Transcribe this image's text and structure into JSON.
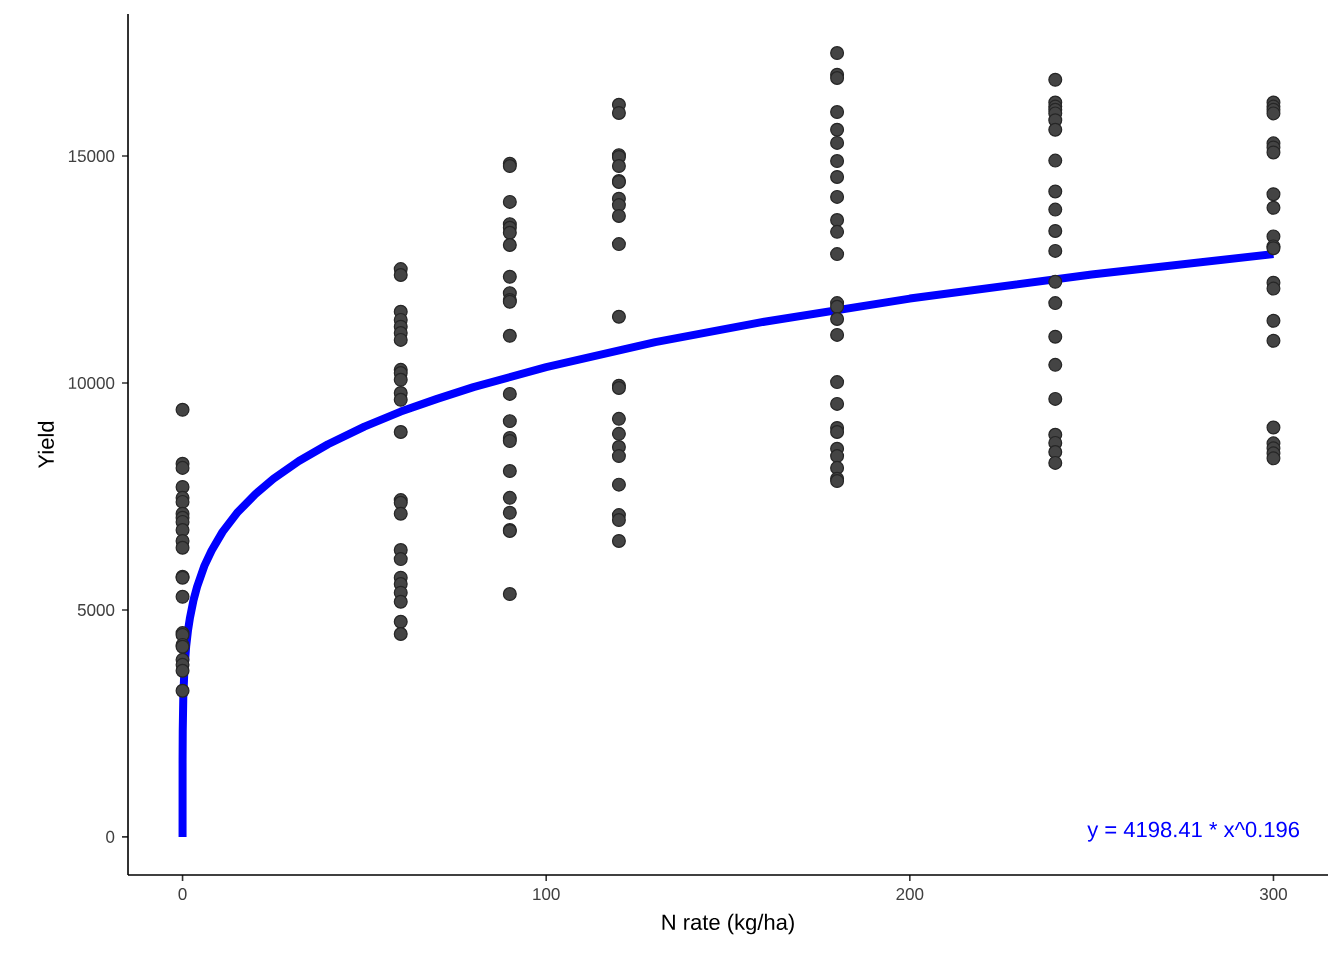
{
  "chart_data": {
    "type": "scatter",
    "xlabel": "N rate (kg/ha)",
    "ylabel": "Yield",
    "xlim": [
      -15,
      315
    ],
    "ylim": [
      -840,
      18130
    ],
    "xticks": [
      0,
      100,
      200,
      300
    ],
    "yticks": [
      0,
      5000,
      10000,
      15000
    ],
    "grid": false,
    "marker": "circle",
    "annotations": [
      "y = 4198.41 * x^0.196"
    ],
    "series": [
      {
        "color": "#444444",
        "x": [
          0,
          0,
          0,
          0,
          0,
          0,
          0,
          0,
          0,
          0,
          0,
          0,
          0,
          0,
          0,
          0,
          0,
          0,
          0,
          0,
          0,
          0,
          0,
          60,
          60,
          60,
          60,
          60,
          60,
          60,
          60,
          60,
          60,
          60,
          60,
          60,
          60,
          60,
          60,
          60,
          60,
          60,
          60,
          60,
          60,
          60,
          60,
          90,
          90,
          90,
          90,
          90,
          90,
          90,
          90,
          90,
          90,
          90,
          90,
          90,
          90,
          90,
          90,
          90,
          90,
          90,
          90,
          90,
          90,
          120,
          120,
          120,
          120,
          120,
          120,
          120,
          120,
          120,
          120,
          120,
          120,
          120,
          120,
          120,
          120,
          120,
          120,
          120,
          120,
          120,
          120,
          180,
          180,
          180,
          180,
          180,
          180,
          180,
          180,
          180,
          180,
          180,
          180,
          180,
          180,
          180,
          180,
          180,
          180,
          180,
          180,
          180,
          180,
          180,
          180,
          180,
          240,
          240,
          240,
          240,
          240,
          240,
          240,
          240,
          240,
          240,
          240,
          240,
          240,
          240,
          240,
          240,
          240,
          240,
          240,
          240,
          240,
          300,
          300,
          300,
          300,
          300,
          300,
          300,
          300,
          300,
          300,
          300,
          300,
          300,
          300,
          300,
          300,
          300,
          300,
          300,
          300,
          300
        ],
        "values": [
          9410,
          8220,
          8130,
          7710,
          7470,
          7380,
          7120,
          7030,
          6940,
          6760,
          6520,
          6370,
          5730,
          5710,
          5290,
          4490,
          4450,
          4230,
          4190,
          3900,
          3790,
          3660,
          3220,
          12510,
          12380,
          11570,
          11390,
          11240,
          11100,
          10950,
          10290,
          10220,
          10070,
          9780,
          9630,
          8920,
          7420,
          7360,
          7120,
          6320,
          6120,
          5710,
          5570,
          5380,
          5180,
          4740,
          4470,
          14830,
          14780,
          13990,
          13500,
          13420,
          13310,
          13040,
          12340,
          11980,
          11830,
          11790,
          11040,
          9760,
          9160,
          8790,
          8720,
          8060,
          7470,
          7140,
          6760,
          6740,
          5350,
          16130,
          15950,
          15020,
          14980,
          14780,
          14450,
          14430,
          14060,
          13920,
          13680,
          13060,
          11460,
          9940,
          9890,
          9210,
          8880,
          8590,
          8390,
          7760,
          7090,
          6980,
          6520,
          17270,
          16790,
          16720,
          15970,
          15580,
          15290,
          14890,
          14540,
          14100,
          13590,
          13330,
          12840,
          11760,
          11680,
          11410,
          11060,
          10020,
          9540,
          9010,
          8920,
          8550,
          8390,
          8130,
          7890,
          7840,
          16680,
          16180,
          16090,
          16020,
          15940,
          15790,
          15580,
          14900,
          14220,
          13820,
          13350,
          12910,
          12230,
          11760,
          11020,
          10400,
          9650,
          8860,
          8680,
          8480,
          8240,
          16180,
          16090,
          16020,
          15940,
          15280,
          15190,
          15080,
          14160,
          13860,
          13230,
          13010,
          12970,
          12210,
          12080,
          11370,
          10930,
          9020,
          8670,
          8560,
          8450,
          8340
        ]
      },
      {
        "type": "line",
        "color": "#0000ff",
        "marker": "none",
        "line_style": "solid",
        "x": [
          0,
          0.01,
          0.05,
          0.2,
          0.5,
          1,
          1.5,
          2,
          3,
          4,
          6,
          8,
          11,
          15,
          20,
          25,
          32,
          40,
          50,
          60,
          70,
          80,
          100,
          130,
          160,
          200,
          250,
          300
        ],
        "values": [
          0,
          1700,
          2330,
          3060,
          3670,
          4200,
          4550,
          4810,
          5210,
          5510,
          5970,
          6310,
          6720,
          7140,
          7550,
          7890,
          8280,
          8650,
          9040,
          9370,
          9650,
          9910,
          10350,
          10900,
          11350,
          11860,
          12390,
          12840
        ]
      }
    ]
  }
}
